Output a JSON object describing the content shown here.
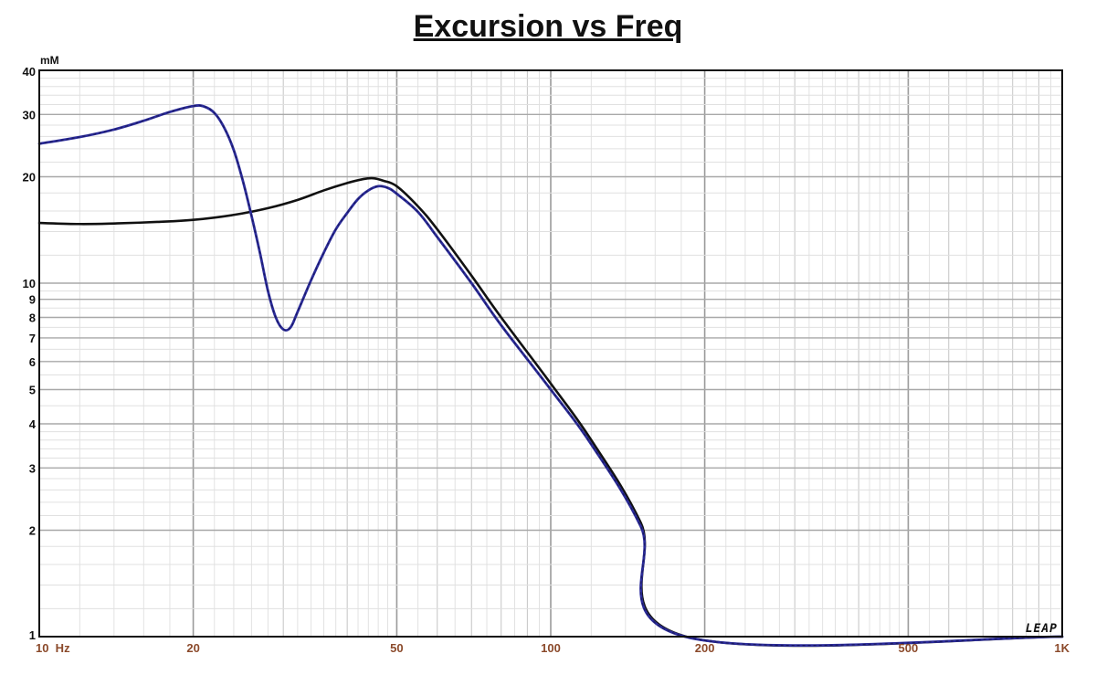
{
  "chart_data": {
    "type": "line",
    "title": "Excursion vs Freq",
    "y_unit": "mM",
    "x_scale": "log",
    "y_scale": "log",
    "xlim": [
      10,
      1000
    ],
    "ylim": [
      1,
      40
    ],
    "grid": true,
    "x_ticks": [
      {
        "value": 10,
        "label": "10  Hz"
      },
      {
        "value": 20,
        "label": "20"
      },
      {
        "value": 50,
        "label": "50"
      },
      {
        "value": 100,
        "label": "100"
      },
      {
        "value": 200,
        "label": "200"
      },
      {
        "value": 500,
        "label": "500"
      },
      {
        "value": 1000,
        "label": "1K"
      }
    ],
    "y_ticks": [
      {
        "value": 1,
        "label": "1"
      },
      {
        "value": 2,
        "label": "2"
      },
      {
        "value": 3,
        "label": "3"
      },
      {
        "value": 4,
        "label": "4"
      },
      {
        "value": 5,
        "label": "5"
      },
      {
        "value": 6,
        "label": "6"
      },
      {
        "value": 7,
        "label": "7"
      },
      {
        "value": 8,
        "label": "8"
      },
      {
        "value": 9,
        "label": "9"
      },
      {
        "value": 10,
        "label": "10"
      },
      {
        "value": 20,
        "label": "20"
      },
      {
        "value": 30,
        "label": "30"
      },
      {
        "value": 40,
        "label": "40"
      }
    ],
    "series": [
      {
        "color": "#111111",
        "style": "solid",
        "points": [
          [
            10,
            14.8
          ],
          [
            12,
            14.7
          ],
          [
            14,
            14.75
          ],
          [
            17,
            14.9
          ],
          [
            20,
            15.1
          ],
          [
            24,
            15.6
          ],
          [
            28,
            16.3
          ],
          [
            32,
            17.2
          ],
          [
            36,
            18.3
          ],
          [
            40,
            19.2
          ],
          [
            43,
            19.7
          ],
          [
            45,
            19.8
          ],
          [
            47,
            19.5
          ],
          [
            50,
            18.8
          ],
          [
            55,
            16.5
          ],
          [
            60,
            14.2
          ],
          [
            70,
            10.5
          ],
          [
            80,
            8.0
          ],
          [
            100,
            5.2
          ],
          [
            120,
            3.6
          ],
          [
            150,
            2.1
          ],
          [
            184,
            1.0
          ],
          [
            1000,
            1.0
          ]
        ]
      },
      {
        "color": "#2B2B9A",
        "style": "dashed",
        "points": [
          [
            10,
            24.8
          ],
          [
            12,
            25.9
          ],
          [
            14,
            27.2
          ],
          [
            16,
            28.8
          ],
          [
            18,
            30.5
          ],
          [
            20,
            31.7
          ],
          [
            21,
            31.6
          ],
          [
            22,
            30.3
          ],
          [
            23,
            27.5
          ],
          [
            24,
            23.8
          ],
          [
            25,
            19.5
          ],
          [
            26,
            15.5
          ],
          [
            27,
            12.2
          ],
          [
            28,
            9.5
          ],
          [
            29,
            8.0
          ],
          [
            30,
            7.4
          ],
          [
            31,
            7.5
          ],
          [
            32,
            8.3
          ],
          [
            34,
            10.2
          ],
          [
            36,
            12.2
          ],
          [
            38,
            14.2
          ],
          [
            40,
            15.8
          ],
          [
            42,
            17.3
          ],
          [
            44,
            18.3
          ],
          [
            46,
            18.8
          ],
          [
            48,
            18.6
          ],
          [
            50,
            17.9
          ],
          [
            55,
            15.9
          ],
          [
            60,
            13.5
          ],
          [
            70,
            10.0
          ],
          [
            80,
            7.6
          ],
          [
            100,
            5.0
          ],
          [
            120,
            3.5
          ],
          [
            150,
            2.05
          ],
          [
            183,
            1.0
          ],
          [
            1000,
            1.0
          ]
        ]
      }
    ]
  },
  "logo_text": "LEAP"
}
